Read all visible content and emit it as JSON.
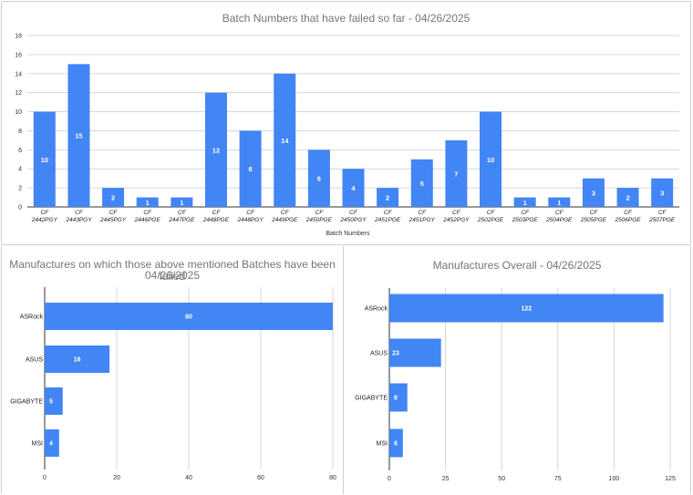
{
  "chart_data": [
    {
      "type": "bar",
      "title": "Batch Numbers that have failed so far - 04/26/2025",
      "xlabel": "Batch Numbers",
      "ylabel": "",
      "ylim": [
        0,
        18
      ],
      "yticks": [
        0,
        2,
        4,
        6,
        8,
        10,
        12,
        14,
        16,
        18
      ],
      "grid": true,
      "color": "#4285f4",
      "categories": [
        [
          "CF",
          "2442PGY"
        ],
        [
          "CF",
          "2443PGY"
        ],
        [
          "CF",
          "2445PGY"
        ],
        [
          "CF",
          "2446PGE"
        ],
        [
          "CF",
          "2447PGE"
        ],
        [
          "CF",
          "2448PGE"
        ],
        [
          "CF",
          "2448PGY"
        ],
        [
          "CF",
          "2449PGE"
        ],
        [
          "CF",
          "2450PGE"
        ],
        [
          "CF",
          "2450PGY"
        ],
        [
          "CF",
          "2451PGE"
        ],
        [
          "CF",
          "2451PGY"
        ],
        [
          "CF",
          "2452PGY"
        ],
        [
          "CF",
          "2502PGE"
        ],
        [
          "CF",
          "2503PGE"
        ],
        [
          "CF",
          "2504PGE"
        ],
        [
          "CF",
          "2505PGE"
        ],
        [
          "CF",
          "2506PGE"
        ],
        [
          "CF",
          "2507PGE"
        ]
      ],
      "values": [
        10,
        15,
        2,
        1,
        1,
        12,
        8,
        14,
        6,
        4,
        2,
        5,
        7,
        10,
        1,
        1,
        3,
        2,
        3
      ]
    },
    {
      "type": "bar",
      "orientation": "horizontal",
      "title": [
        "Manufactures on which those above mentioned Batches have been failed",
        "04/26/2025"
      ],
      "xlabel": "",
      "ylabel": "",
      "xlim": [
        0,
        80
      ],
      "xticks": [
        0,
        20,
        40,
        60,
        80
      ],
      "grid": true,
      "color": "#4285f4",
      "categories": [
        "ASRock",
        "ASUS",
        "GIGABYTE",
        "MSI"
      ],
      "values": [
        80,
        18,
        5,
        4
      ]
    },
    {
      "type": "bar",
      "orientation": "horizontal",
      "title": "Manufactures Overall - 04/26/2025",
      "xlabel": "",
      "ylabel": "",
      "xlim": [
        0,
        125
      ],
      "xticks": [
        0,
        25,
        50,
        75,
        100,
        125
      ],
      "grid": true,
      "color": "#4285f4",
      "categories": [
        "ASRock",
        "ASUS",
        "GIGABYTE",
        "MSI"
      ],
      "values": [
        122,
        23,
        8,
        6
      ]
    }
  ]
}
